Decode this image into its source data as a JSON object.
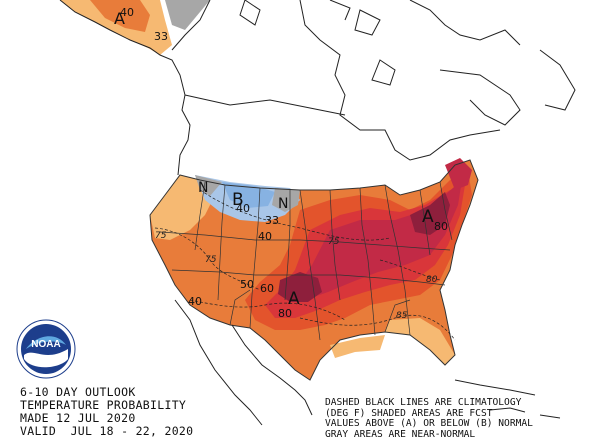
{
  "product": {
    "line1": "6-10 DAY OUTLOOK",
    "line2": "TEMPERATURE PROBABILITY",
    "made": "MADE 12 JUL 2020",
    "valid": "VALID  JUL 18 - 22, 2020"
  },
  "legend_note": {
    "line1": "DASHED BLACK LINES ARE CLIMATOLOGY",
    "line2": "(DEG F) SHADED AREAS ARE FCST",
    "line3": "VALUES ABOVE (A) OR BELOW (B) NORMAL",
    "line4": "GRAY AREAS ARE NEAR-NORMAL"
  },
  "logo": {
    "text": "NOAA"
  },
  "map_labels": {
    "above_east": "A",
    "above_plains": "A",
    "above_alaska": "A",
    "below_north": "B",
    "near_normal_n1": "N",
    "near_normal_n2": "N"
  },
  "probabilities": {
    "p40_alaska": "40",
    "p33_alaska": "33",
    "p40_north": "40",
    "p33_north": "33",
    "p40_north2": "40",
    "p80_east": "80",
    "p80_plains": "80",
    "p60_plains": "60",
    "p50_plains": "50",
    "p40_south": "40"
  },
  "climatology": {
    "c75_west": "75",
    "c75_central": "75",
    "c75_rockies": "75",
    "c85_south": "85",
    "c80_southeast": "80"
  },
  "colors": {
    "above_33": "#f6b972",
    "above_40": "#e87c3a",
    "above_50": "#e3542c",
    "above_60": "#d9363a",
    "above_70": "#c22a46",
    "above_80": "#8e1f3c",
    "below_33": "#a9c6e8",
    "below_40": "#87b2e2",
    "near_normal": "#a7a7a7"
  }
}
